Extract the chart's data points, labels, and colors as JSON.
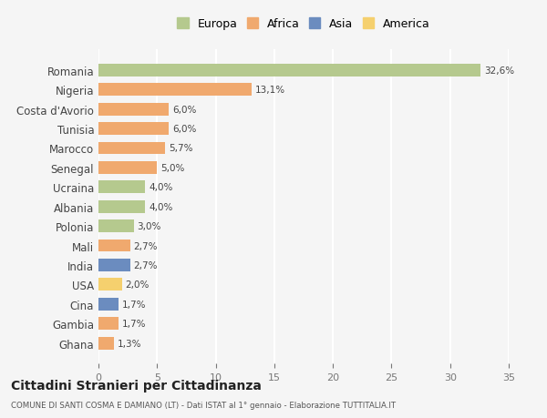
{
  "countries": [
    "Romania",
    "Nigeria",
    "Costa d'Avorio",
    "Tunisia",
    "Marocco",
    "Senegal",
    "Ucraina",
    "Albania",
    "Polonia",
    "Mali",
    "India",
    "USA",
    "Cina",
    "Gambia",
    "Ghana"
  ],
  "values": [
    32.6,
    13.1,
    6.0,
    6.0,
    5.7,
    5.0,
    4.0,
    4.0,
    3.0,
    2.7,
    2.7,
    2.0,
    1.7,
    1.7,
    1.3
  ],
  "labels": [
    "32,6%",
    "13,1%",
    "6,0%",
    "6,0%",
    "5,7%",
    "5,0%",
    "4,0%",
    "4,0%",
    "3,0%",
    "2,7%",
    "2,7%",
    "2,0%",
    "1,7%",
    "1,7%",
    "1,3%"
  ],
  "colors": [
    "#b5c98e",
    "#f0a96e",
    "#f0a96e",
    "#f0a96e",
    "#f0a96e",
    "#f0a96e",
    "#b5c98e",
    "#b5c98e",
    "#b5c98e",
    "#f0a96e",
    "#6b8cbf",
    "#f5d06e",
    "#6b8cbf",
    "#f0a96e",
    "#f0a96e"
  ],
  "legend": [
    {
      "label": "Europa",
      "color": "#b5c98e"
    },
    {
      "label": "Africa",
      "color": "#f0a96e"
    },
    {
      "label": "Asia",
      "color": "#6b8cbf"
    },
    {
      "label": "America",
      "color": "#f5d06e"
    }
  ],
  "xlim": [
    0,
    35
  ],
  "xticks": [
    0,
    5,
    10,
    15,
    20,
    25,
    30,
    35
  ],
  "title": "Cittadini Stranieri per Cittadinanza",
  "subtitle": "COMUNE DI SANTI COSMA E DAMIANO (LT) - Dati ISTAT al 1° gennaio - Elaborazione TUTTITALIA.IT",
  "bg_color": "#f5f5f5",
  "grid_color": "#ffffff",
  "bar_height": 0.65
}
